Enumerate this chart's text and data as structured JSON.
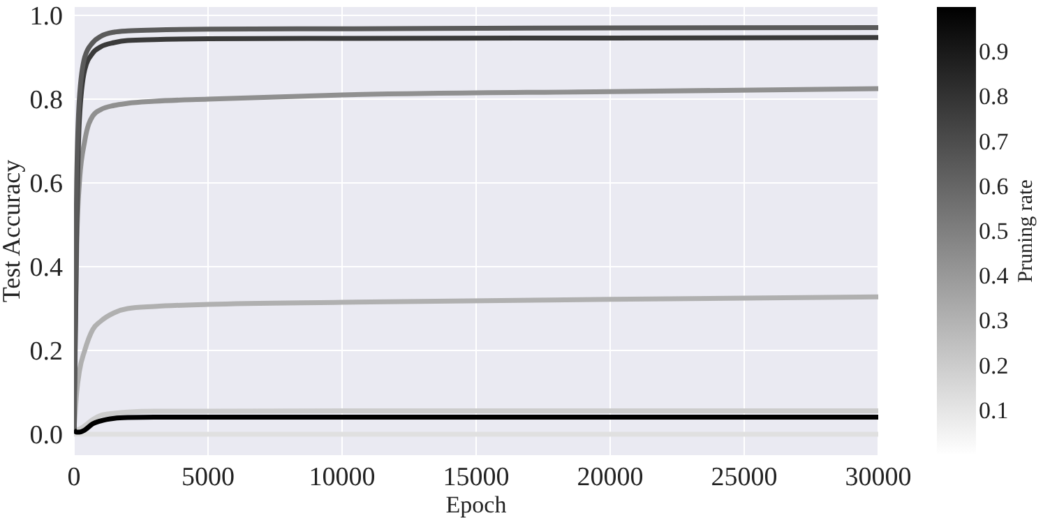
{
  "chart_data": {
    "type": "line",
    "xlabel": "Epoch",
    "ylabel": "Test Accuracy",
    "clabel": "Pruning rate",
    "x": [
      0,
      100,
      200,
      400,
      700,
      1000,
      1500,
      2000,
      3000,
      5000,
      10000,
      20000,
      30000
    ],
    "series": [
      {
        "color": "#e0e0e0",
        "values": [
          0.0,
          0.0,
          0.0,
          0.0,
          0.0,
          0.0,
          0.0,
          0.0,
          0.0,
          0.0,
          0.0,
          0.0,
          0.0
        ]
      },
      {
        "color": "#cccccc",
        "values": [
          0.01,
          0.01,
          0.012,
          0.02,
          0.035,
          0.045,
          0.05,
          0.053,
          0.055,
          0.055,
          0.056,
          0.056,
          0.056
        ]
      },
      {
        "color": "#b0b0b0",
        "values": [
          0.01,
          0.1,
          0.15,
          0.2,
          0.25,
          0.27,
          0.29,
          0.3,
          0.305,
          0.31,
          0.315,
          0.322,
          0.328
        ]
      },
      {
        "color": "#909090",
        "values": [
          0.01,
          0.45,
          0.6,
          0.7,
          0.76,
          0.775,
          0.785,
          0.79,
          0.795,
          0.8,
          0.81,
          0.818,
          0.825
        ]
      },
      {
        "color": "#3a3a3a",
        "values": [
          0.01,
          0.5,
          0.75,
          0.87,
          0.91,
          0.925,
          0.935,
          0.94,
          0.942,
          0.944,
          0.945,
          0.946,
          0.947
        ]
      },
      {
        "color": "#5a5a5a",
        "values": [
          0.01,
          0.6,
          0.8,
          0.9,
          0.935,
          0.95,
          0.96,
          0.963,
          0.965,
          0.967,
          0.968,
          0.97,
          0.971
        ]
      },
      {
        "color": "#000000",
        "values": [
          0.01,
          0.005,
          0.005,
          0.01,
          0.025,
          0.032,
          0.038,
          0.04,
          0.041,
          0.041,
          0.041,
          0.041,
          0.041
        ]
      }
    ],
    "xlim": [
      0,
      30000
    ],
    "xticks": [
      0,
      5000,
      10000,
      15000,
      20000,
      25000,
      30000
    ],
    "ylim": [
      -0.05,
      1.02
    ],
    "yticks": [
      {
        "value": 0,
        "label": "0.0"
      },
      0.2,
      0.4,
      0.6,
      0.8,
      {
        "value": 1,
        "label": "1.0"
      }
    ],
    "grid": true,
    "marker": "none",
    "line_style": "solid",
    "clim": [
      0,
      1
    ],
    "cticks": [
      0.1,
      0.2,
      0.3,
      0.4,
      0.5,
      0.6,
      0.7,
      0.8,
      0.9
    ]
  }
}
